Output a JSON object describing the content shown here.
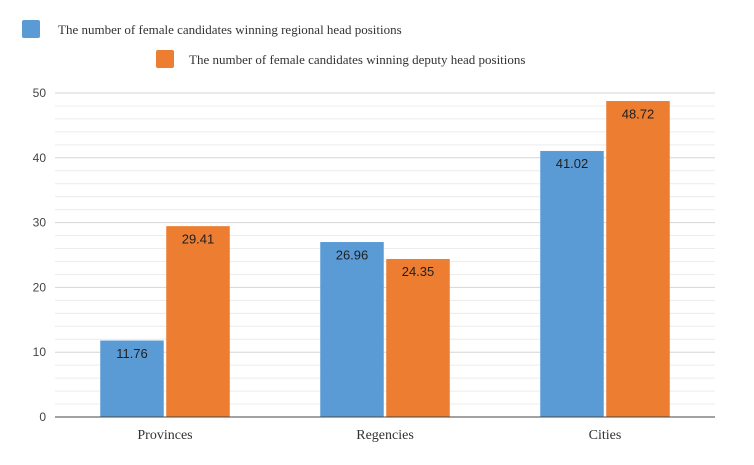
{
  "chart_data": {
    "type": "bar",
    "categories": [
      "Provinces",
      "Regencies",
      "Cities"
    ],
    "series": [
      {
        "name": "The number of female candidates winning regional head positions",
        "values": [
          11.76,
          26.96,
          41.02
        ],
        "value_labels": [
          "11.76",
          "26.96",
          "41.02"
        ],
        "color": "#5b9bd5"
      },
      {
        "name": "The number of female candidates winning deputy head positions",
        "values": [
          29.41,
          24.35,
          48.72
        ],
        "value_labels": [
          "29.41",
          "24.35",
          "48.72"
        ],
        "color": "#ed7d31"
      }
    ],
    "ylim": [
      0,
      50
    ],
    "yticks": [
      0,
      10,
      20,
      30,
      40,
      50
    ],
    "ytick_labels": [
      "0",
      "10",
      "20",
      "30",
      "40",
      "50"
    ],
    "minor_grid_step": 2,
    "grid": true,
    "legend_position": "top",
    "data_labels": "inside-top"
  }
}
